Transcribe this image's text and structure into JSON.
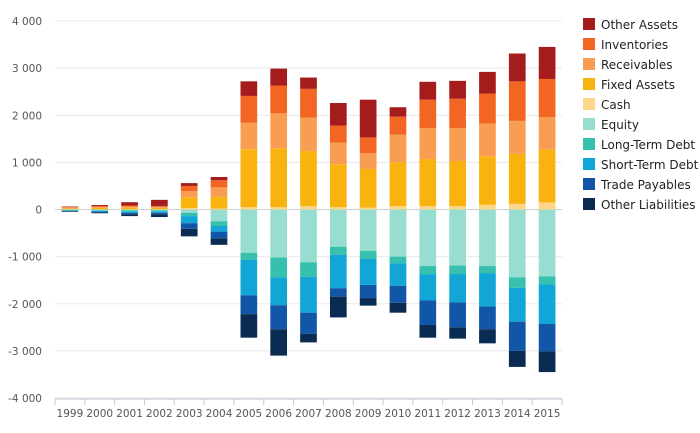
{
  "chart_data": {
    "type": "bar",
    "stacked": true,
    "title": "",
    "xlabel": "",
    "ylabel": "",
    "ylim": [
      -4000,
      4000
    ],
    "yticks": [
      4000,
      3000,
      2000,
      1000,
      0,
      -1000,
      -2000,
      -3000,
      -4000
    ],
    "ytick_labels": [
      "4 000",
      "3 000",
      "2 000",
      "1 000",
      "0",
      "-1 000",
      "-2 000",
      "-3 000",
      "-4 000"
    ],
    "grid": true,
    "legend_position": "right",
    "categories": [
      "1999",
      "2000",
      "2001",
      "2002",
      "2003",
      "2004",
      "2005",
      "2006",
      "2007",
      "2008",
      "2009",
      "2010",
      "2011",
      "2012",
      "2013",
      "2014",
      "2015"
    ],
    "series": [
      {
        "name": "Other Assets",
        "color": "#a51c1c",
        "side": "asset",
        "values": [
          10,
          20,
          70,
          130,
          60,
          70,
          310,
          360,
          240,
          480,
          800,
          200,
          380,
          380,
          460,
          590,
          680
        ]
      },
      {
        "name": "Inventories",
        "color": "#f26522",
        "side": "asset",
        "values": [
          10,
          20,
          20,
          20,
          110,
          150,
          570,
          590,
          610,
          360,
          330,
          380,
          600,
          620,
          640,
          840,
          810
        ]
      },
      {
        "name": "Receivables",
        "color": "#f99d52",
        "side": "asset",
        "values": [
          20,
          20,
          20,
          20,
          130,
          200,
          560,
          740,
          710,
          460,
          340,
          590,
          660,
          700,
          690,
          700,
          690
        ]
      },
      {
        "name": "Fixed Assets",
        "color": "#f8b30f",
        "side": "asset",
        "values": [
          20,
          30,
          40,
          30,
          230,
          250,
          1230,
          1250,
          1170,
          910,
          820,
          930,
          1000,
          960,
          1030,
          1060,
          1120
        ]
      },
      {
        "name": "Cash",
        "color": "#fdd68a",
        "side": "asset",
        "values": [
          5,
          5,
          5,
          5,
          30,
          20,
          50,
          50,
          70,
          50,
          40,
          70,
          70,
          70,
          100,
          120,
          150
        ]
      },
      {
        "name": "Equity",
        "color": "#97ddd0",
        "side": "liability",
        "values": [
          -10,
          -15,
          -20,
          -20,
          -70,
          -250,
          -920,
          -1020,
          -1120,
          -790,
          -880,
          -1000,
          -1200,
          -1190,
          -1200,
          -1440,
          -1420
        ]
      },
      {
        "name": "Long-Term Debt",
        "color": "#38c0ae",
        "side": "liability",
        "values": [
          -10,
          -10,
          -20,
          -20,
          -70,
          -100,
          -150,
          -420,
          -310,
          -170,
          -170,
          -140,
          -180,
          -180,
          -150,
          -220,
          -170
        ]
      },
      {
        "name": "Short-Term Debt",
        "color": "#11a6d6",
        "side": "liability",
        "values": [
          -10,
          -20,
          -30,
          -30,
          -150,
          -120,
          -750,
          -590,
          -760,
          -710,
          -550,
          -480,
          -550,
          -600,
          -710,
          -720,
          -840
        ]
      },
      {
        "name": "Trade Payables",
        "color": "#1257a7",
        "side": "liability",
        "values": [
          -10,
          -15,
          -30,
          -30,
          -120,
          -140,
          -400,
          -510,
          -450,
          -180,
          -280,
          -360,
          -520,
          -530,
          -480,
          -620,
          -580
        ]
      },
      {
        "name": "Other Liabilities",
        "color": "#0b2c52",
        "side": "liability",
        "values": [
          -10,
          -20,
          -40,
          -60,
          -160,
          -140,
          -500,
          -560,
          -180,
          -440,
          -160,
          -210,
          -270,
          -240,
          -300,
          -340,
          -440
        ]
      }
    ]
  }
}
